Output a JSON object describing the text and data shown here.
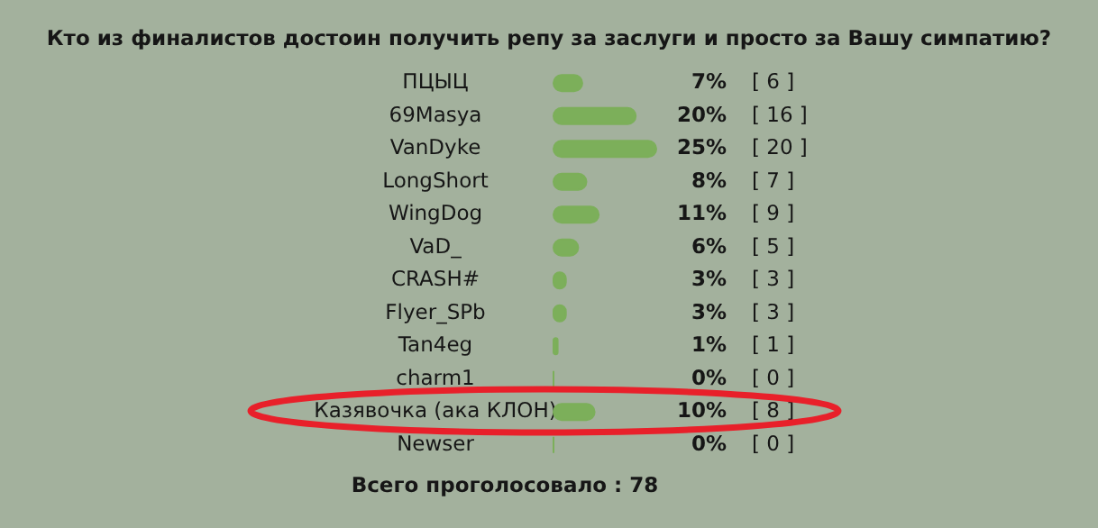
{
  "chart_data": {
    "type": "bar",
    "orientation": "horizontal",
    "title": "Кто из финалистов достоин получить репу за заслуги и просто за Вашу симпатию?",
    "categories": [
      "ПЦЫЦ",
      "69Masya",
      "VanDyke",
      "LongShort",
      "WingDog",
      "VaD_",
      "CRASH#",
      "Flyer_SPb",
      "Tan4eg",
      "charm1",
      "Казявочка (ака КЛОН)",
      "Newser"
    ],
    "values": [
      7,
      20,
      25,
      8,
      11,
      6,
      3,
      3,
      1,
      0,
      10,
      0
    ],
    "value_labels": [
      "7%",
      "20%",
      "25%",
      "8%",
      "11%",
      "6%",
      "3%",
      "3%",
      "1%",
      "0%",
      "10%",
      "0%"
    ],
    "color": "#7caf5a",
    "annotations": [
      "[ 6 ]",
      "[ 16 ]",
      "[ 20 ]",
      "[ 7 ]",
      "[ 9 ]",
      "[ 5 ]",
      "[ 3 ]",
      "[ 3 ]",
      "[ 1 ]",
      "[ 0 ]",
      "[ 8 ]",
      "[ 0 ]",
      "Всего проголосовало : 78"
    ]
  }
}
